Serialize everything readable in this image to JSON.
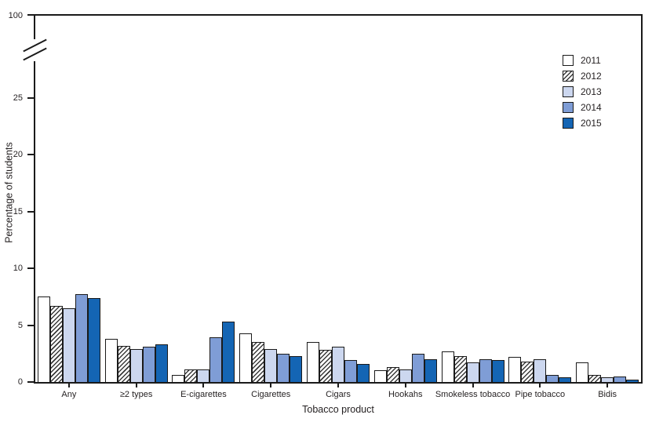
{
  "figure": {
    "x_axis_title": "Tobacco product",
    "y_axis_title": "Percentage of students"
  },
  "chart_data": {
    "type": "bar",
    "title": "",
    "xlabel": "Tobacco product",
    "ylabel": "Percentage of students",
    "grid": false,
    "legend_position": "top-right-inside",
    "y_axis": {
      "ticks": [
        100,
        25,
        20,
        15,
        10,
        5,
        0
      ],
      "has_break": true,
      "break_between": [
        25,
        100
      ],
      "lower_segment_range": [
        0,
        27.5
      ]
    },
    "categories": [
      "Any",
      "≥2 types",
      "E-cigarettes",
      "Cigarettes",
      "Cigars",
      "Hookahs",
      "Smokeless tobacco",
      "Pipe tobacco",
      "Bidis"
    ],
    "series": [
      {
        "name": "2011",
        "fill": "#ffffff",
        "pattern": "solid",
        "values": [
          7.5,
          3.8,
          0.6,
          4.3,
          3.5,
          1.0,
          2.7,
          2.2,
          1.7
        ]
      },
      {
        "name": "2012",
        "fill": "#ffffff",
        "pattern": "diagonal-hatch",
        "hatch_color": "#3a3a3a",
        "values": [
          6.7,
          3.2,
          1.1,
          3.5,
          2.8,
          1.3,
          2.3,
          1.8,
          0.6
        ]
      },
      {
        "name": "2013",
        "fill": "#ccd7ef",
        "pattern": "solid",
        "values": [
          6.5,
          2.9,
          1.1,
          2.9,
          3.1,
          1.1,
          1.7,
          2.0,
          0.4
        ]
      },
      {
        "name": "2014",
        "fill": "#7f9dd6",
        "pattern": "solid",
        "values": [
          7.7,
          3.1,
          3.9,
          2.5,
          1.9,
          2.5,
          2.0,
          0.6,
          0.5
        ]
      },
      {
        "name": "2015",
        "fill": "#1465b4",
        "pattern": "solid",
        "values": [
          7.4,
          3.3,
          5.3,
          2.3,
          1.6,
          2.0,
          1.9,
          0.4,
          0.2
        ]
      }
    ],
    "colors": {
      "axis": "#1a1a1a",
      "text": "#231f20"
    }
  }
}
